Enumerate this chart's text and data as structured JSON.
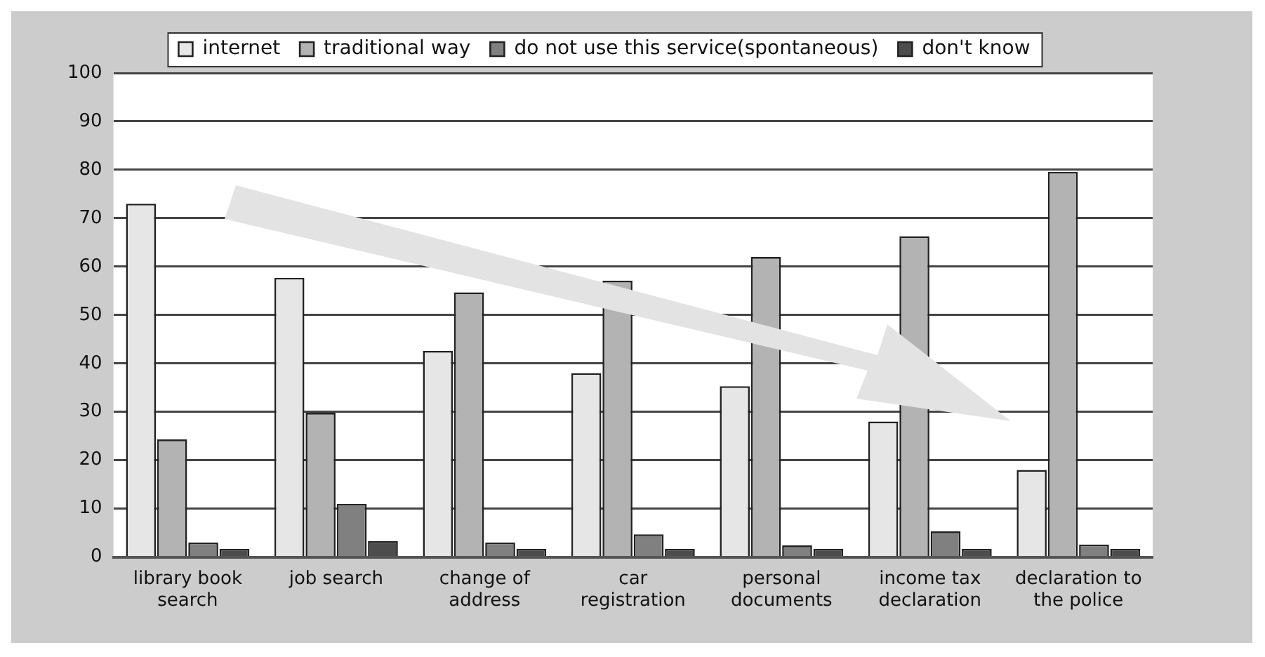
{
  "chart_data": {
    "type": "bar",
    "categories": [
      "library book search",
      "job search",
      "change of address",
      "car registration",
      "personal documents",
      "income tax declaration",
      "declaration to the police"
    ],
    "series": [
      {
        "name": "internet",
        "color": "#e6e6e6",
        "values": [
          73,
          57.7,
          42.6,
          38,
          35.3,
          28,
          18
        ]
      },
      {
        "name": "traditional way",
        "color": "#b3b3b3",
        "values": [
          24.3,
          29.8,
          54.7,
          57.1,
          62,
          66.3,
          79.6
        ]
      },
      {
        "name": "do not use this service(spontaneous)",
        "color": "#808080",
        "values": [
          3,
          11,
          3,
          4.7,
          2.4,
          5.3,
          2.6
        ]
      },
      {
        "name": "don't know",
        "color": "#4d4d4d",
        "values": [
          1.7,
          3.3,
          1.7,
          1.7,
          1.7,
          1.7,
          1.7
        ]
      }
    ],
    "ylim": [
      0,
      100
    ],
    "yticks": [
      0,
      10,
      20,
      30,
      40,
      50,
      60,
      70,
      80,
      90,
      100
    ],
    "grid": "y",
    "legend": "top"
  }
}
